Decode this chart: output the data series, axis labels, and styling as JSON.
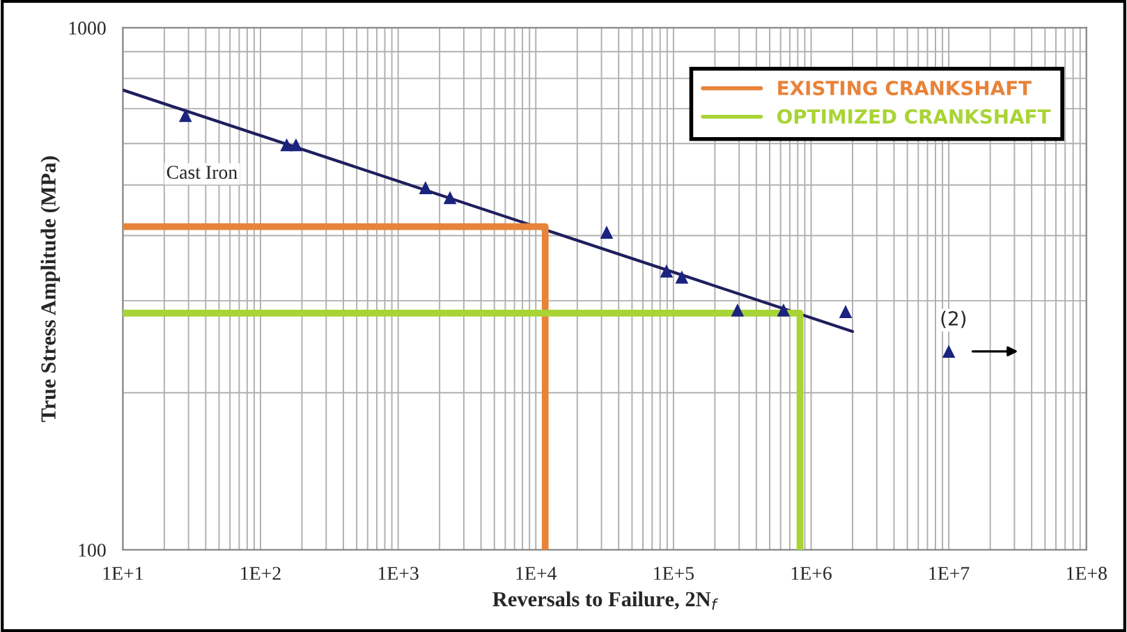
{
  "chart_data": {
    "type": "scatter",
    "xlabel": "Reversals to Failure, 2N$_{f}$",
    "ylabel": "True Stress Amplitude (MPa)",
    "log": "xy",
    "grid": true,
    "legend": "top right",
    "marker": "triangle",
    "xlim": [
      10,
      100000000
    ],
    "ylim": [
      100,
      1000
    ],
    "xticks": [
      {
        "value": 10,
        "label": "1E+1"
      },
      {
        "value": 100,
        "label": "1E+2"
      },
      {
        "value": 1000,
        "label": "1E+3"
      },
      {
        "value": 10000,
        "label": "1E+4"
      },
      {
        "value": 100000,
        "label": "1E+5"
      },
      {
        "value": 1000000,
        "label": "1E+6"
      },
      {
        "value": 10000000,
        "label": "1E+7"
      },
      {
        "value": 100000000,
        "label": "1E+8"
      }
    ],
    "yticks": [
      100,
      1000
    ],
    "series": [
      {
        "color": "#1a237e",
        "x": [
          28.5,
          155,
          181,
          1580,
          2380,
          32700,
          89000,
          115000,
          292000,
          630000,
          1780000,
          10000000
        ],
        "values": [
          679,
          597,
          597,
          494,
          473,
          406,
          342,
          333,
          288,
          288,
          286,
          240
        ]
      },
      {
        "type": "line",
        "marker": "none",
        "color": "#1f1f5e",
        "x": [
          10,
          2000000
        ],
        "values": [
          760,
          262
        ]
      },
      {
        "type": "line",
        "marker": "none",
        "name": "EXISTING CRANKSHAFT",
        "color": "#e8833a",
        "x": [
          10,
          11700,
          11700
        ],
        "values": [
          416,
          416,
          100
        ]
      },
      {
        "type": "line",
        "marker": "none",
        "name": "OPTIMIZED CRANKSHAFT",
        "color": "#a8d435",
        "x": [
          10,
          830000,
          830000
        ],
        "values": [
          284,
          284,
          100
        ]
      }
    ],
    "annotations": [
      "Cast Iron",
      "(2)"
    ]
  }
}
